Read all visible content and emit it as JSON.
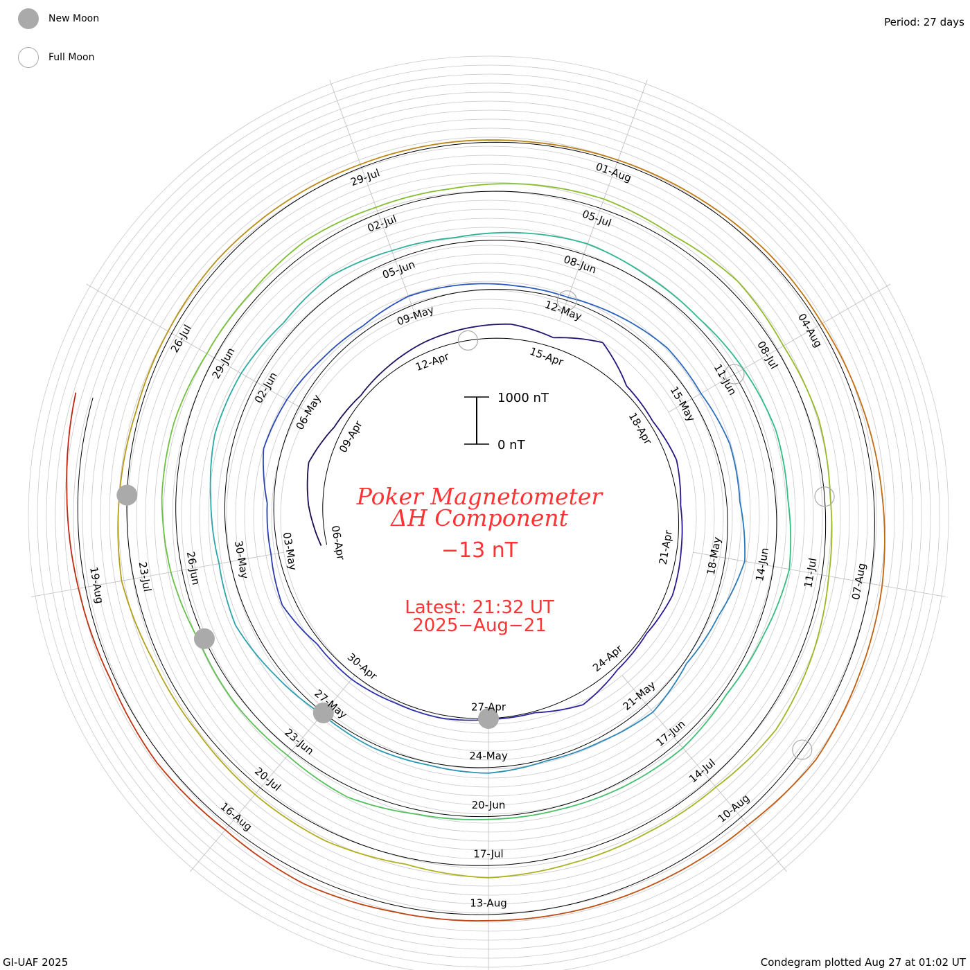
{
  "legend": {
    "new_moon": "New Moon",
    "full_moon": "Full Moon"
  },
  "period": "Period: 27 days",
  "footer_left": "GI-UAF 2025",
  "footer_right": "Condegram plotted Aug 27 at 01:02 UT",
  "chart_data": {
    "type": "line",
    "subtype": "spiral condegram",
    "title": "Poker Magnetometer",
    "subtitle": "ΔH Component",
    "current_value": "−13 nT",
    "latest_line1": "Latest: 21:32 UT",
    "latest_line2": "2025−Aug−21",
    "scale_top_label": "1000 nT",
    "scale_bottom_label": "0 nT",
    "scale_nT": 1000,
    "period_days": 27,
    "start_date": "2025-04-06",
    "end_date": "2025-08-21",
    "units": "nT",
    "daily_values": [
      120,
      300,
      420,
      180,
      90,
      150,
      220,
      260,
      310,
      200,
      540,
      120,
      80,
      180,
      60,
      90,
      150,
      40,
      80,
      260,
      30,
      20,
      70,
      60,
      110,
      90,
      280,
      160,
      140,
      380,
      300,
      180,
      120,
      210,
      150,
      90,
      70,
      160,
      260,
      220,
      320,
      280,
      420,
      180,
      60,
      210,
      90,
      40,
      120,
      60,
      80,
      40,
      160,
      320,
      240,
      300,
      420,
      380,
      260,
      340,
      200,
      120,
      180,
      240,
      160,
      140,
      220,
      300,
      260,
      340,
      180,
      90,
      160,
      120,
      70,
      60,
      90,
      220,
      140,
      160,
      120,
      240,
      300,
      280,
      180,
      160,
      220,
      140,
      120,
      180,
      210,
      140,
      240,
      160,
      200,
      120,
      150,
      260,
      340,
      210,
      180,
      200,
      260,
      140,
      220,
      180,
      120,
      140,
      260,
      160,
      80,
      90,
      120,
      100,
      70,
      60,
      40,
      50,
      60,
      80,
      70,
      120,
      180,
      260,
      300,
      360,
      220,
      180,
      160,
      130,
      140,
      200,
      120,
      160,
      90,
      150,
      240,
      380
    ],
    "date_labels": [
      {
        "day": 0,
        "text": "06-Apr"
      },
      {
        "day": 3,
        "text": "09-Apr"
      },
      {
        "day": 6,
        "text": "12-Apr"
      },
      {
        "day": 9,
        "text": "15-Apr"
      },
      {
        "day": 12,
        "text": "18-Apr"
      },
      {
        "day": 15,
        "text": "21-Apr"
      },
      {
        "day": 18,
        "text": "24-Apr"
      },
      {
        "day": 21,
        "text": "27-Apr"
      },
      {
        "day": 24,
        "text": "30-Apr"
      },
      {
        "day": 27,
        "text": "03-May"
      },
      {
        "day": 30,
        "text": "06-May"
      },
      {
        "day": 33,
        "text": "09-May"
      },
      {
        "day": 36,
        "text": "12-May"
      },
      {
        "day": 39,
        "text": "15-May"
      },
      {
        "day": 42,
        "text": "18-May"
      },
      {
        "day": 45,
        "text": "21-May"
      },
      {
        "day": 48,
        "text": "24-May"
      },
      {
        "day": 51,
        "text": "27-May"
      },
      {
        "day": 54,
        "text": "30-May"
      },
      {
        "day": 57,
        "text": "02-Jun"
      },
      {
        "day": 60,
        "text": "05-Jun"
      },
      {
        "day": 63,
        "text": "08-Jun"
      },
      {
        "day": 66,
        "text": "11-Jun"
      },
      {
        "day": 69,
        "text": "14-Jun"
      },
      {
        "day": 72,
        "text": "17-Jun"
      },
      {
        "day": 75,
        "text": "20-Jun"
      },
      {
        "day": 78,
        "text": "23-Jun"
      },
      {
        "day": 81,
        "text": "26-Jun"
      },
      {
        "day": 84,
        "text": "29-Jun"
      },
      {
        "day": 87,
        "text": "02-Jul"
      },
      {
        "day": 90,
        "text": "05-Jul"
      },
      {
        "day": 93,
        "text": "08-Jul"
      },
      {
        "day": 96,
        "text": "11-Jul"
      },
      {
        "day": 99,
        "text": "14-Jul"
      },
      {
        "day": 102,
        "text": "17-Jul"
      },
      {
        "day": 105,
        "text": "20-Jul"
      },
      {
        "day": 108,
        "text": "23-Jul"
      },
      {
        "day": 111,
        "text": "26-Jul"
      },
      {
        "day": 114,
        "text": "29-Jul"
      },
      {
        "day": 117,
        "text": "01-Aug"
      },
      {
        "day": 120,
        "text": "04-Aug"
      },
      {
        "day": 123,
        "text": "07-Aug"
      },
      {
        "day": 126,
        "text": "10-Aug"
      },
      {
        "day": 129,
        "text": "13-Aug"
      },
      {
        "day": 132,
        "text": "16-Aug"
      },
      {
        "day": 135,
        "text": "19-Aug"
      }
    ],
    "new_moons_day": [
      21,
      51,
      80,
      109
    ],
    "full_moons_day": [
      7,
      36,
      66,
      95,
      125
    ],
    "color_stops": [
      "#1a0a4a",
      "#2a1a9a",
      "#2a5ac0",
      "#2aa0b0",
      "#30c080",
      "#80c030",
      "#b0b020",
      "#c07010",
      "#c02010"
    ]
  }
}
